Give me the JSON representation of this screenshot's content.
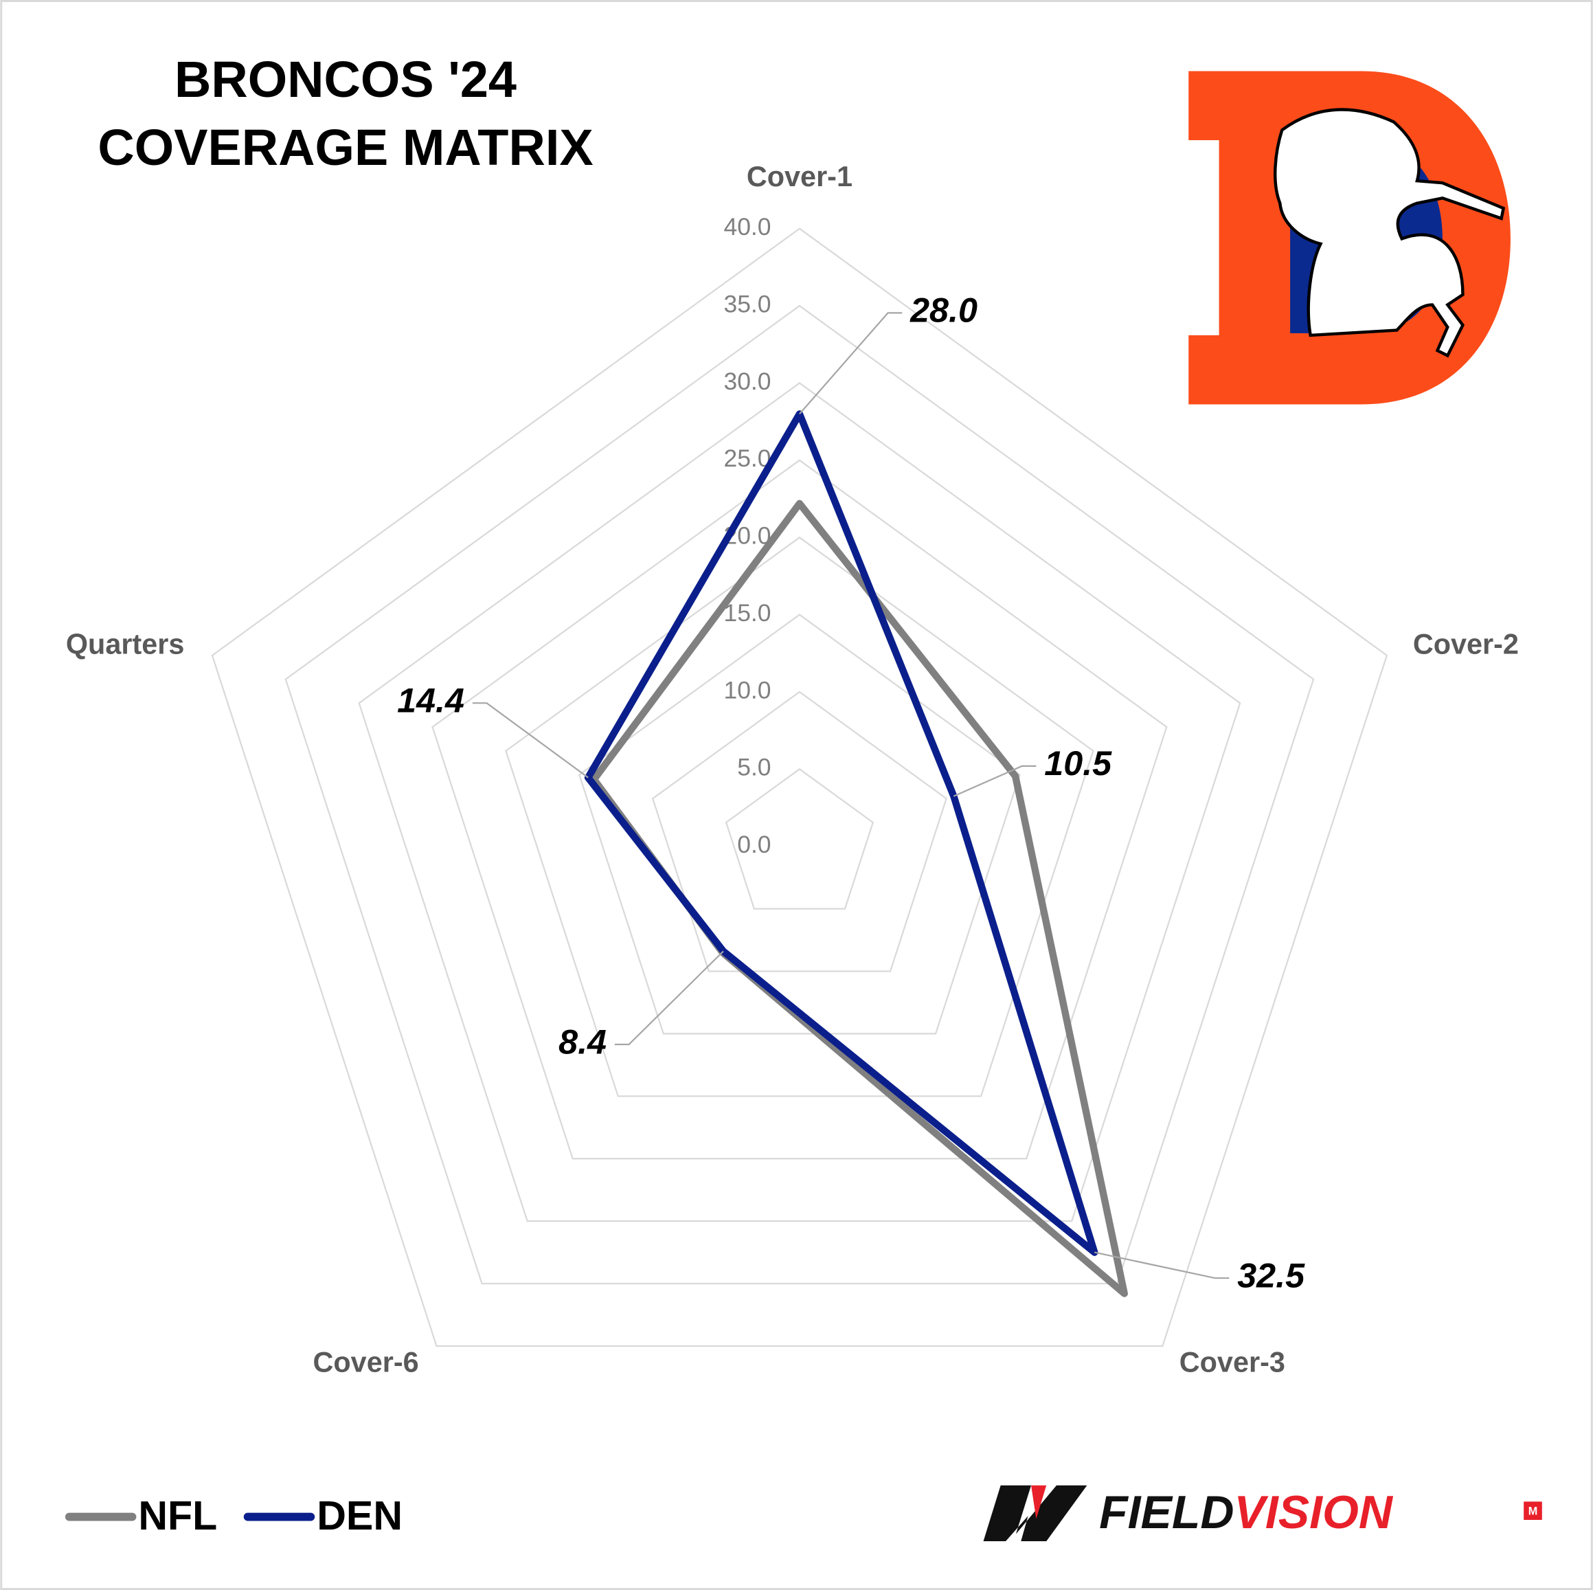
{
  "chart_data": {
    "type": "radar",
    "title": [
      "BRONCOS '24",
      "COVERAGE MATRIX"
    ],
    "categories": [
      "Cover-1",
      "Cover-2",
      "Cover-3",
      "Cover-6",
      "Quarters"
    ],
    "series": [
      {
        "name": "NFL",
        "color": "#808080",
        "values": [
          22.2,
          14.7,
          35.8,
          8.5,
          14.0
        ]
      },
      {
        "name": "DEN",
        "color": "#0b1f8c",
        "values": [
          28.0,
          10.5,
          32.5,
          8.4,
          14.4
        ],
        "value_labels": [
          "28.0",
          "10.5",
          "32.5",
          "8.4",
          "14.4"
        ]
      }
    ],
    "ylim": [
      0,
      40
    ],
    "yticks": [
      {
        "value": 0,
        "label": "0.0"
      },
      {
        "value": 5,
        "label": "5.0"
      },
      {
        "value": 10,
        "label": "10.0"
      },
      {
        "value": 15,
        "label": "15.0"
      },
      {
        "value": 20,
        "label": "20.0"
      },
      {
        "value": 25,
        "label": "25.0"
      },
      {
        "value": 30,
        "label": "30.0"
      },
      {
        "value": 35,
        "label": "35.0"
      },
      {
        "value": 40,
        "label": "40.0"
      }
    ],
    "grid": true,
    "legend": "bottom-left"
  },
  "branding": {
    "brand_part1": "FIELD",
    "brand_part2": "VISION",
    "badge": "M"
  }
}
